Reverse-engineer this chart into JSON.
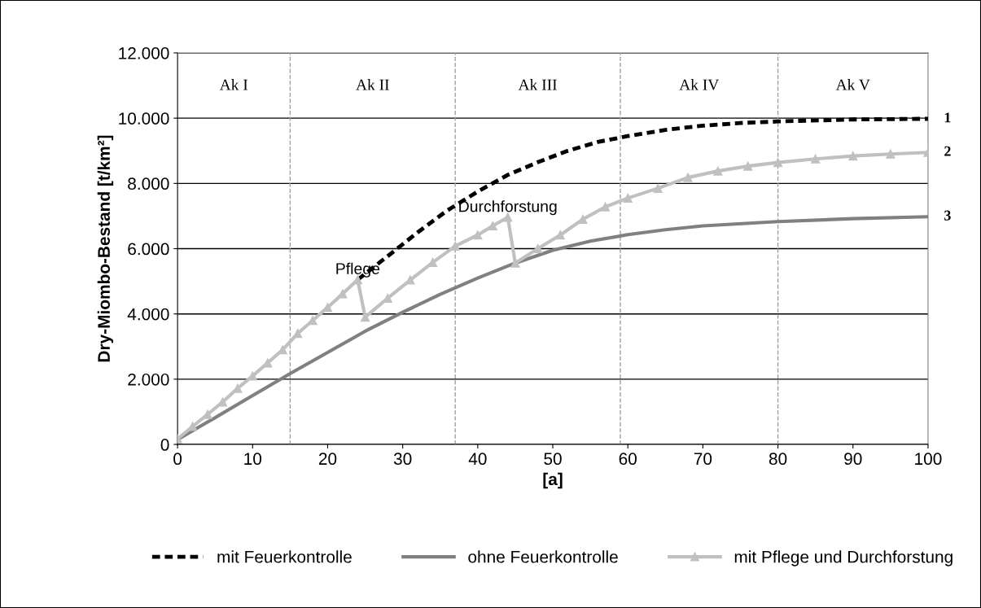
{
  "chart_data": {
    "type": "line",
    "xlabel": "[a]",
    "ylabel": "Dry-Miombo-Bestand [t/km²]",
    "xlim": [
      0,
      100
    ],
    "xticks": [
      0,
      10,
      20,
      30,
      40,
      50,
      60,
      70,
      80,
      90,
      100
    ],
    "ylim": [
      0,
      12000
    ],
    "yticks": [
      0,
      {
        "value": 2000,
        "label": "2.000"
      },
      {
        "value": 4000,
        "label": "4.000"
      },
      {
        "value": 6000,
        "label": "6.000"
      },
      {
        "value": 8000,
        "label": "8.000"
      },
      {
        "value": 10000,
        "label": "10.000"
      },
      {
        "value": 12000,
        "label": "12.000"
      }
    ],
    "grid": "y",
    "legend": "bottom",
    "series": [
      {
        "name": "mit Feuerkontrolle",
        "color": "#000000",
        "line_style": "dashed",
        "marker": "none",
        "x": [
          24,
          28,
          32,
          36,
          40,
          44,
          48,
          52,
          56,
          60,
          65,
          70,
          75,
          80,
          90,
          100
        ],
        "values": [
          5050,
          5770,
          6500,
          7180,
          7750,
          8260,
          8650,
          9000,
          9270,
          9450,
          9640,
          9770,
          9850,
          9900,
          9960,
          9980
        ]
      },
      {
        "name": "ohne Feuerkontrolle",
        "color": "#808080",
        "line_style": "solid",
        "marker": "none",
        "x": [
          0,
          5,
          10,
          15,
          20,
          25,
          30,
          35,
          40,
          45,
          50,
          55,
          60,
          65,
          70,
          80,
          90,
          100
        ],
        "values": [
          150,
          820,
          1500,
          2170,
          2820,
          3470,
          4050,
          4600,
          5100,
          5560,
          5950,
          6230,
          6430,
          6580,
          6700,
          6830,
          6920,
          6980
        ]
      },
      {
        "name": "mit Pflege und Durchforstung",
        "color": "#c0c0c0",
        "line_style": "solid",
        "marker": "triangle",
        "x": [
          0,
          2,
          4,
          6,
          8,
          10,
          12,
          14,
          16,
          18,
          20,
          22,
          24,
          25,
          28,
          31,
          34,
          37,
          40,
          42,
          44,
          45,
          48,
          51,
          54,
          57,
          60,
          64,
          68,
          72,
          76,
          80,
          85,
          90,
          95,
          100
        ],
        "values": [
          170,
          550,
          920,
          1300,
          1720,
          2100,
          2500,
          2900,
          3400,
          3800,
          4200,
          4620,
          5050,
          3900,
          4480,
          5040,
          5580,
          6080,
          6420,
          6700,
          6960,
          5560,
          6000,
          6420,
          6900,
          7280,
          7550,
          7850,
          8180,
          8380,
          8530,
          8640,
          8750,
          8840,
          8900,
          8950
        ]
      }
    ],
    "ref_lines": [
      {
        "axis": "x",
        "value": 15,
        "color": "#a0a0a0",
        "line_style": "dashed"
      },
      {
        "axis": "x",
        "value": 37,
        "color": "#a0a0a0",
        "line_style": "dashed"
      },
      {
        "axis": "x",
        "value": 59,
        "color": "#a0a0a0",
        "line_style": "dashed"
      },
      {
        "axis": "x",
        "value": 80,
        "color": "#a0a0a0",
        "line_style": "dashed"
      }
    ],
    "annotations": [
      "Ak I",
      "Ak II",
      "Ak III",
      "Ak IV",
      "Ak V",
      {
        "text": "Pflege",
        "x": 24,
        "y": 5050
      },
      {
        "text": "Durchforstung",
        "x": 44,
        "y": 6960
      },
      {
        "text": "1",
        "x": 100,
        "y": 9980
      },
      {
        "text": "2",
        "x": 100,
        "y": 8950
      },
      {
        "text": "3",
        "x": 100,
        "y": 6980
      }
    ]
  }
}
